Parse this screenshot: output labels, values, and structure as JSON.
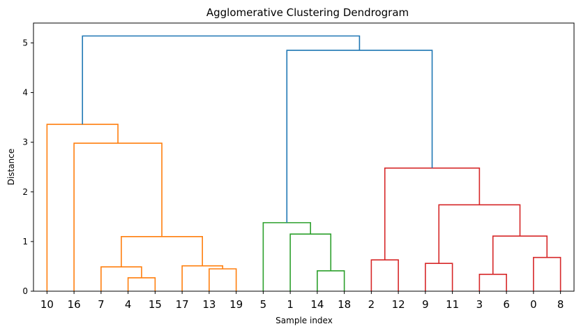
{
  "chart_data": {
    "type": "dendrogram",
    "title": "Agglomerative Clustering Dendrogram",
    "xlabel": "Sample index",
    "ylabel": "Distance",
    "ylim": [
      0,
      5.4
    ],
    "yticks": [
      0,
      1,
      2,
      3,
      4,
      5
    ],
    "grid": false,
    "leaf_order": [
      "10",
      "16",
      "7",
      "4",
      "15",
      "17",
      "13",
      "19",
      "5",
      "1",
      "14",
      "18",
      "2",
      "12",
      "9",
      "11",
      "3",
      "6",
      "0",
      "8"
    ],
    "colors": {
      "orange": "#ff7f0e",
      "green": "#2ca02c",
      "red": "#d62728",
      "blue": "#1f77b4",
      "axis": "#000000"
    },
    "merges": [
      {
        "a": "L:4",
        "b": "L:15",
        "height": 0.27,
        "color": "orange"
      },
      {
        "a": "L:7",
        "b": "M:0",
        "height": 0.49,
        "color": "orange"
      },
      {
        "a": "L:13",
        "b": "L:19",
        "height": 0.45,
        "color": "orange"
      },
      {
        "a": "L:17",
        "b": "M:2",
        "height": 0.51,
        "color": "orange"
      },
      {
        "a": "M:1",
        "b": "M:3",
        "height": 1.1,
        "color": "orange"
      },
      {
        "a": "L:16",
        "b": "M:4",
        "height": 2.98,
        "color": "orange"
      },
      {
        "a": "L:10",
        "b": "M:5",
        "height": 3.36,
        "color": "orange"
      },
      {
        "a": "L:14",
        "b": "L:18",
        "height": 0.41,
        "color": "green"
      },
      {
        "a": "L:1",
        "b": "M:7",
        "height": 1.15,
        "color": "green"
      },
      {
        "a": "L:5",
        "b": "M:8",
        "height": 1.38,
        "color": "green"
      },
      {
        "a": "L:2",
        "b": "L:12",
        "height": 0.63,
        "color": "red"
      },
      {
        "a": "L:9",
        "b": "L:11",
        "height": 0.56,
        "color": "red"
      },
      {
        "a": "L:3",
        "b": "L:6",
        "height": 0.34,
        "color": "red"
      },
      {
        "a": "L:0",
        "b": "L:8",
        "height": 0.68,
        "color": "red"
      },
      {
        "a": "M:12",
        "b": "M:13",
        "height": 1.11,
        "color": "red"
      },
      {
        "a": "M:11",
        "b": "M:14",
        "height": 1.74,
        "color": "red"
      },
      {
        "a": "M:10",
        "b": "M:15",
        "height": 2.48,
        "color": "red"
      },
      {
        "a": "M:9",
        "b": "M:16",
        "height": 4.85,
        "color": "blue"
      },
      {
        "a": "M:6",
        "b": "M:17",
        "height": 5.14,
        "color": "blue"
      }
    ]
  }
}
